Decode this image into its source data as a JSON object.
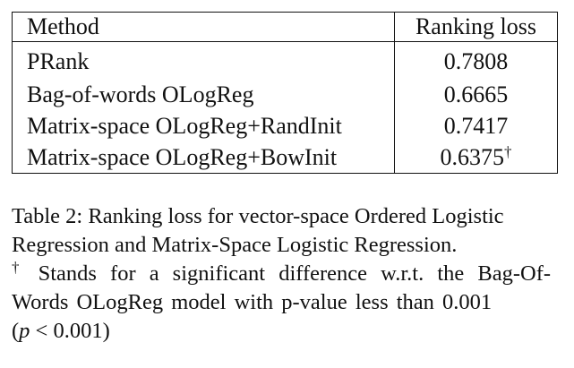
{
  "table": {
    "headers": {
      "method": "Method",
      "loss": "Ranking loss"
    },
    "rows": [
      {
        "method": "PRank",
        "loss": "0.7808",
        "mark": ""
      },
      {
        "method": "Bag-of-words OLogReg",
        "loss": "0.6665",
        "mark": ""
      },
      {
        "method": "Matrix-space OLogReg+RandInit",
        "loss": "0.7417",
        "mark": ""
      },
      {
        "method": "Matrix-space OLogReg+BowInit",
        "loss": "0.6375",
        "mark": "†"
      }
    ]
  },
  "caption": {
    "text": "Table 2: Ranking loss for vector-space Ordered Logistic Regression and Matrix-Space Logistic Regression.",
    "footnote_mark": "†",
    "footnote": "Stands for a significant difference w.r.t. the Bag-Of-Words OLogReg model with p-value less than 0.001",
    "math_open": "(",
    "math_var": "p",
    "math_rest": " < 0.001)"
  }
}
